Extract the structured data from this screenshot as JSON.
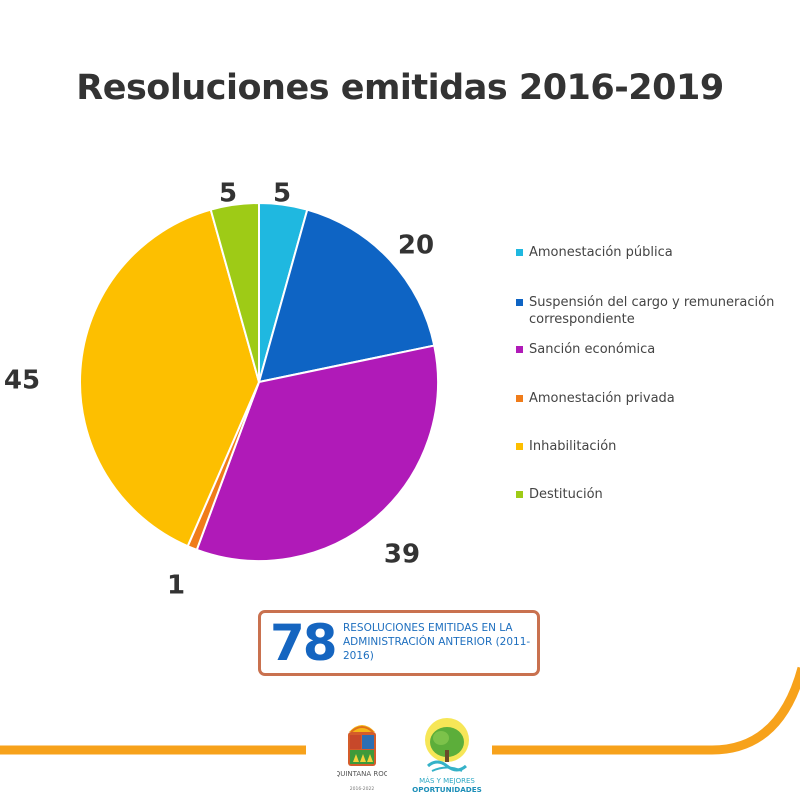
{
  "title": "Resoluciones emitidas 2016-2019",
  "chart_data": {
    "type": "pie",
    "title": "Resoluciones emitidas 2016-2019",
    "start_angle": "top",
    "direction": "clockwise",
    "categories": [
      "Amonestación pública",
      "Suspensión del cargo y remuneración correspondiente",
      "Sanción económica",
      "Amonestación privada",
      "Inhabilitación",
      "Destitución"
    ],
    "values": [
      5,
      20,
      39,
      1,
      45,
      5
    ],
    "labels": [
      "5",
      "20",
      "39",
      "1",
      "45",
      "5"
    ],
    "colors": [
      "#1fb8e0",
      "#0e64c4",
      "#b01ab8",
      "#f07c1a",
      "#fdbf00",
      "#9ecb16"
    ],
    "legend_position": "right"
  },
  "legend": {
    "items": [
      {
        "label": "Amonestación pública",
        "color": "#1fb8e0"
      },
      {
        "label": "Suspensión del cargo y remuneración correspondiente",
        "color": "#0e64c4"
      },
      {
        "label": "Sanción económica",
        "color": "#b01ab8"
      },
      {
        "label": "Amonestación privada",
        "color": "#f07c1a"
      },
      {
        "label": "Inhabilitación",
        "color": "#fdbf00"
      },
      {
        "label": "Destitución",
        "color": "#9ecb16"
      }
    ]
  },
  "summary": {
    "number": "78",
    "text": "RESOLUCIONES EMITIDAS EN LA ADMINISTRACIÓN ANTERIOR (2011-2016)",
    "border_color": "#c9714f",
    "number_color": "#1565c0"
  },
  "footer": {
    "line_color": "#f7a21b",
    "logo_left_text": "QUINTANA ROO",
    "logo_left_years": "2016-2022",
    "logo_right_line1": "MÁS Y MEJORES",
    "logo_right_line2": "OPORTUNIDADES"
  }
}
